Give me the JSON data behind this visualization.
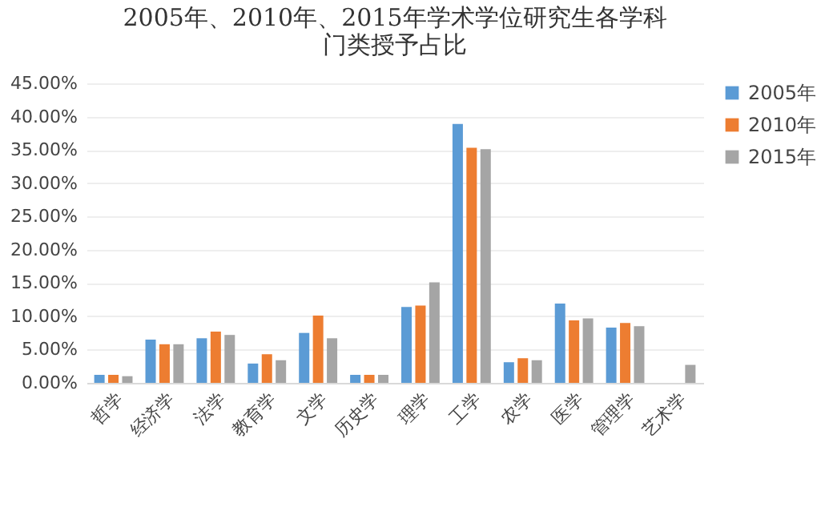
{
  "chart_data": {
    "type": "bar",
    "title": "2005年、2010年、2015年学术学位研究生各学科门类授予占比",
    "categories": [
      "哲学",
      "经济学",
      "法学",
      "教育学",
      "文学",
      "历史学",
      "理学",
      "工学",
      "农学",
      "医学",
      "管理学",
      "艺术学"
    ],
    "series": [
      {
        "name": "2005年",
        "color": "#5b9bd5",
        "values": [
          1.2,
          6.5,
          6.7,
          2.9,
          7.5,
          1.2,
          11.4,
          38.9,
          3.1,
          11.9,
          8.3,
          null
        ]
      },
      {
        "name": "2010年",
        "color": "#ed7d31",
        "values": [
          1.2,
          5.8,
          7.7,
          4.3,
          10.1,
          1.2,
          11.6,
          35.3,
          3.7,
          9.4,
          9.0,
          null
        ]
      },
      {
        "name": "2015年",
        "color": "#a5a5a5",
        "values": [
          1.0,
          5.8,
          7.2,
          3.4,
          6.7,
          1.2,
          15.1,
          35.1,
          3.4,
          9.7,
          8.5,
          2.7
        ]
      }
    ],
    "ylim": [
      0,
      45
    ],
    "yticks": [
      {
        "value": 0,
        "label": "0.00%"
      },
      {
        "value": 5,
        "label": "5.00%"
      },
      {
        "value": 10,
        "label": "10.00%"
      },
      {
        "value": 15,
        "label": "15.00%"
      },
      {
        "value": 20,
        "label": "20.00%"
      },
      {
        "value": 25,
        "label": "25.00%"
      },
      {
        "value": 30,
        "label": "30.00%"
      },
      {
        "value": 35,
        "label": "35.00%"
      },
      {
        "value": 40,
        "label": "40.00%"
      },
      {
        "value": 45,
        "label": "45.00%"
      }
    ],
    "grid": "y",
    "legend": "right"
  }
}
